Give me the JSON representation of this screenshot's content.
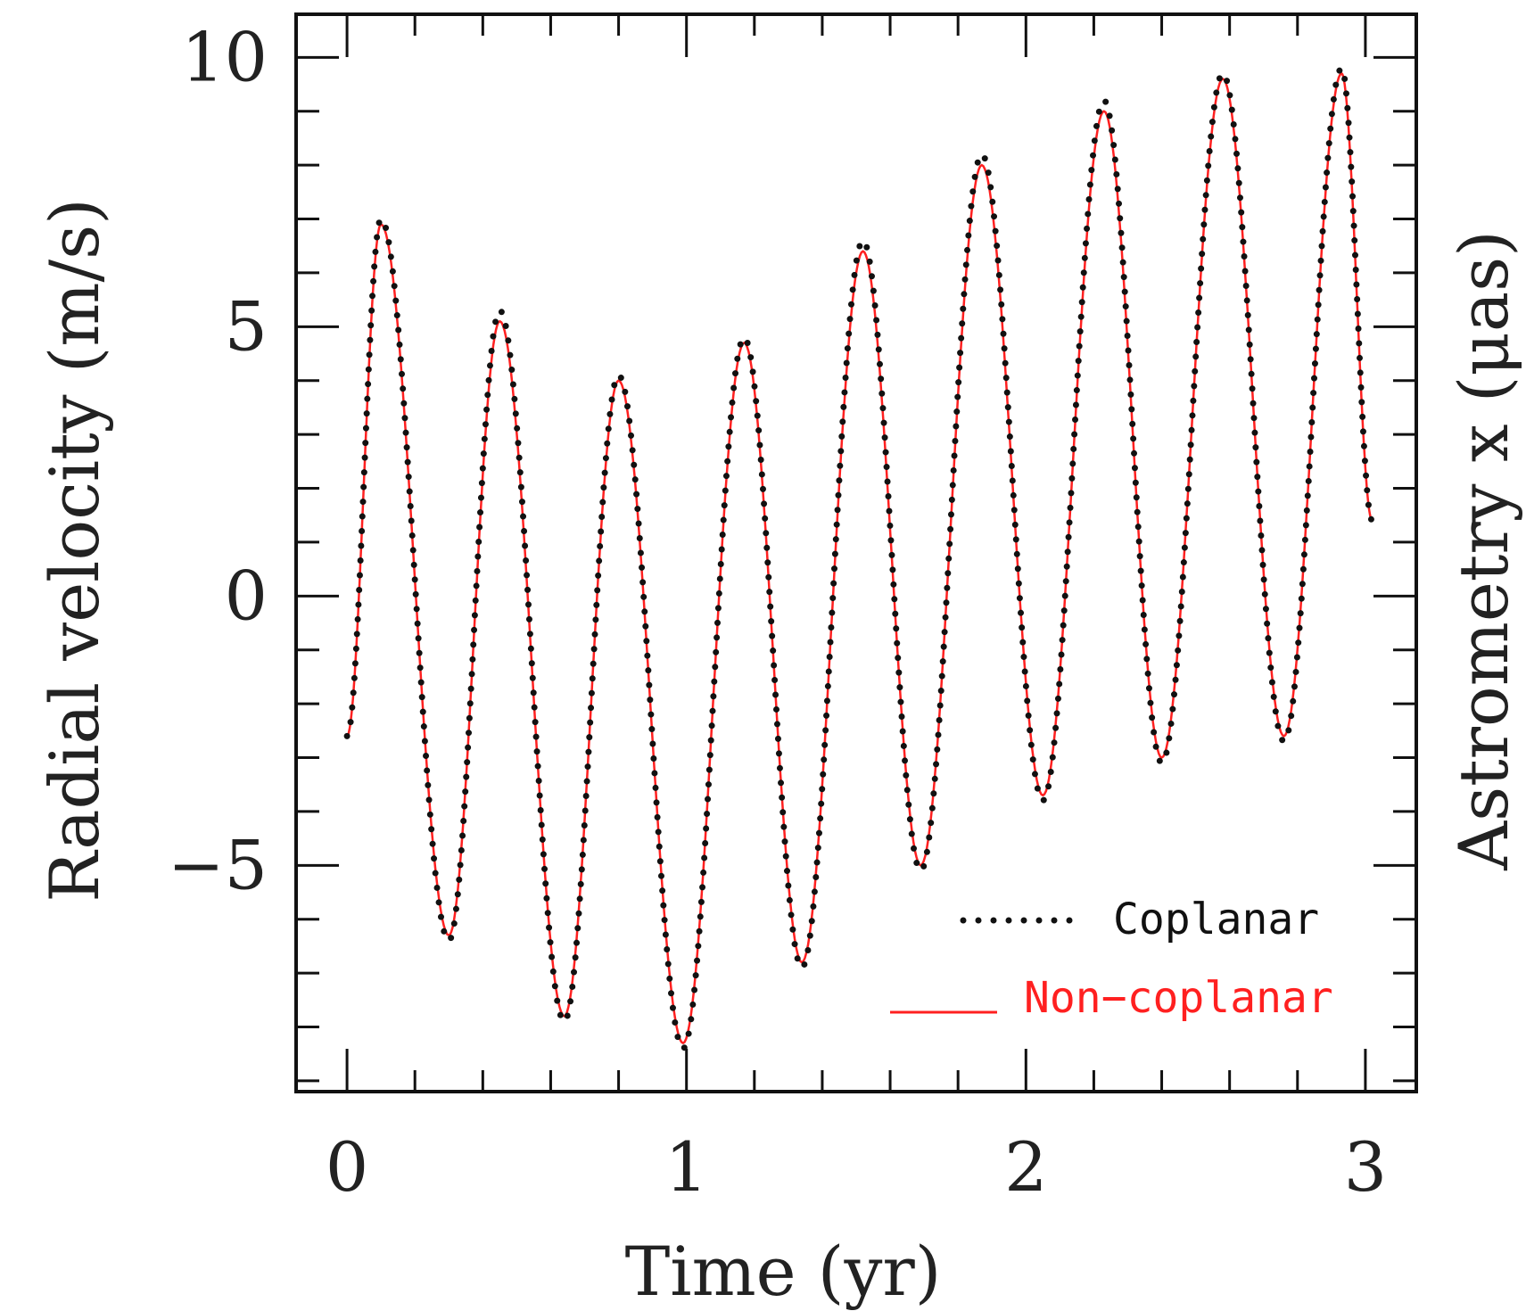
{
  "chart_data": {
    "type": "line",
    "title": "",
    "xlabel": "Time (yr)",
    "ylabel": "Radial velocity (m/s)",
    "ylabel_right": "Astrometry x (μas)",
    "xlim": [
      -0.15,
      3.15
    ],
    "ylim": [
      -9.2,
      10.8
    ],
    "x_ticks": [
      0,
      1,
      2,
      3
    ],
    "x_tick_labels": [
      "0",
      "1",
      "2",
      "3"
    ],
    "y_ticks": [
      10,
      5,
      0,
      -5
    ],
    "y_tick_labels": [
      "10",
      "5",
      "0",
      "−5"
    ],
    "x_minor_step": 0.2,
    "y_minor_step": 1,
    "grid": false,
    "legend_position": "bottom-right",
    "colors": {
      "coplanar": "#111111",
      "non_coplanar": "#ff2020",
      "frame": "#111111"
    },
    "series": [
      {
        "name": "Coplanar",
        "style": "dotted",
        "color": "#111111",
        "x": [
          0,
          0.1,
          0.3,
          0.45,
          0.64,
          0.8,
          0.99,
          1.17,
          1.34,
          1.52,
          1.69,
          1.87,
          2.05,
          2.23,
          2.4,
          2.58,
          2.76,
          2.93,
          3.02
        ],
        "y": [
          -2.6,
          7.0,
          -6.4,
          5.3,
          -7.9,
          4.1,
          -8.4,
          4.8,
          -6.9,
          6.6,
          -5.1,
          8.2,
          -3.8,
          9.2,
          -3.1,
          9.7,
          -2.7,
          9.8,
          1.4
        ]
      },
      {
        "name": "Non−coplanar",
        "style": "solid",
        "color": "#ff2020",
        "x": [
          0,
          0.1,
          0.3,
          0.45,
          0.64,
          0.8,
          0.99,
          1.17,
          1.34,
          1.52,
          1.69,
          1.87,
          2.05,
          2.23,
          2.4,
          2.58,
          2.76,
          2.93,
          3.02
        ],
        "y": [
          -2.6,
          6.9,
          -6.3,
          5.1,
          -7.8,
          4.0,
          -8.3,
          4.7,
          -6.8,
          6.4,
          -5.0,
          8.0,
          -3.7,
          9.0,
          -3.0,
          9.6,
          -2.6,
          9.7,
          1.4
        ]
      }
    ]
  }
}
